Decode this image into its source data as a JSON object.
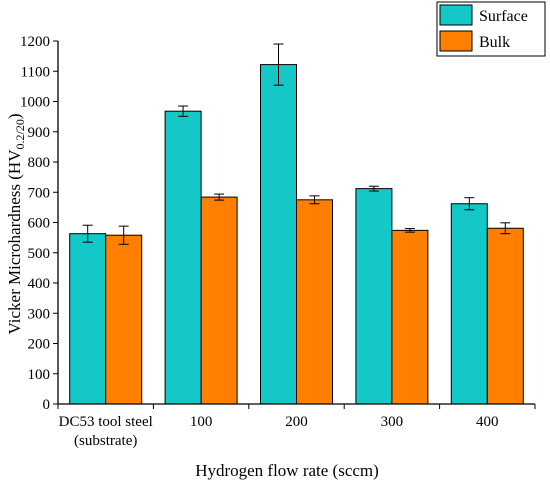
{
  "chart_data": {
    "type": "bar",
    "categories": [
      [
        "DC53 tool steel",
        "(substrate)"
      ],
      [
        "100"
      ],
      [
        "200"
      ],
      [
        "300"
      ],
      [
        "400"
      ]
    ],
    "series": [
      {
        "name": "Surface",
        "color": "#14C8C8",
        "values": [
          563,
          968,
          1122,
          712,
          662
        ],
        "errors": [
          28,
          17,
          68,
          8,
          20
        ]
      },
      {
        "name": "Bulk",
        "color": "#FF8000",
        "values": [
          558,
          684,
          675,
          574,
          581
        ],
        "errors": [
          30,
          10,
          13,
          6,
          18
        ]
      }
    ],
    "xlabel": "Hydrogen flow rate (sccm)",
    "ylabel_main": "Vicker Microhardness (HV",
    "ylabel_sub": "0.2/20",
    "ylabel_close": ")",
    "ylim": [
      0,
      1200
    ],
    "yticks": [
      0,
      100,
      200,
      300,
      400,
      500,
      600,
      700,
      800,
      900,
      1000,
      1100,
      1200
    ],
    "legend_position": "top-right",
    "grid": false
  }
}
